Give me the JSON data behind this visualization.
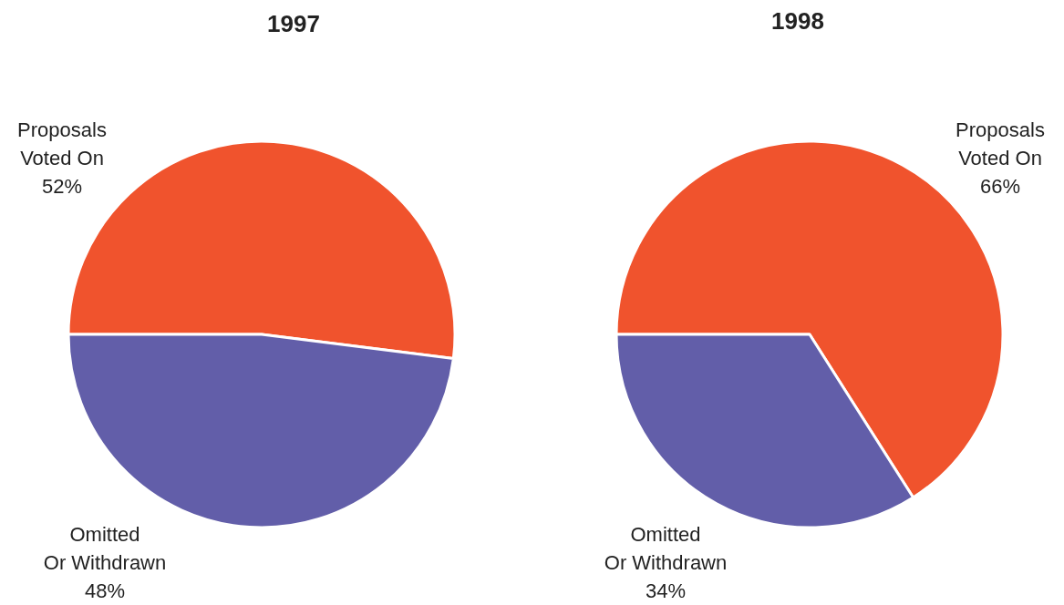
{
  "chart_data": [
    {
      "type": "pie",
      "title": "1997",
      "categories": [
        "Proposals\nVoted On",
        "Omitted\nOr Withdrawn"
      ],
      "values": [
        52,
        48
      ],
      "colors": [
        "#f0532d",
        "#625ea9"
      ],
      "value_labels": [
        "52%",
        "48%"
      ]
    },
    {
      "type": "pie",
      "title": "1998",
      "categories": [
        "Proposals\nVoted On",
        "Omitted\nOr Withdrawn"
      ],
      "values": [
        66,
        34
      ],
      "colors": [
        "#f0532d",
        "#625ea9"
      ],
      "value_labels": [
        "66%",
        "34%"
      ]
    }
  ]
}
